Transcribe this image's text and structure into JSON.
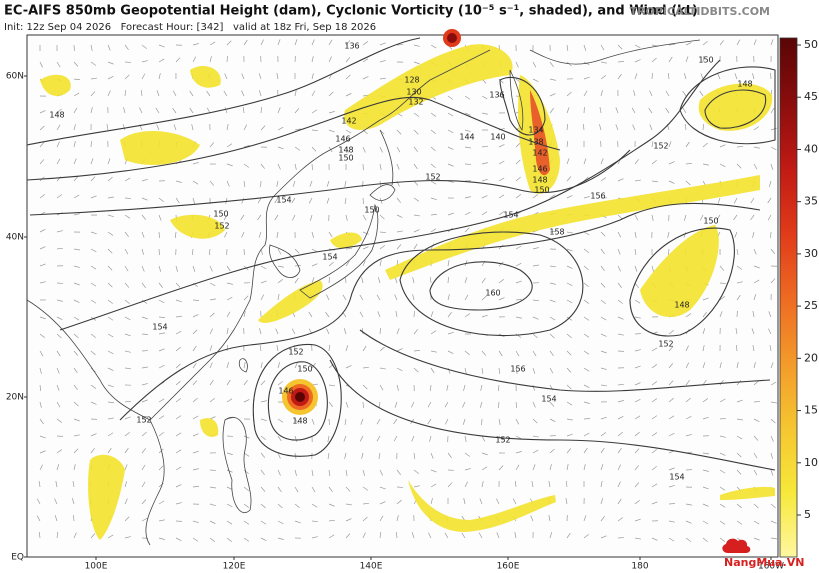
{
  "header": {
    "title": "EC-AIFS 850mb Geopotential Height (dam), Cyclonic Vorticity (10⁻⁵ s⁻¹, shaded), and Wind (kt)",
    "subtitle": "Init: 12z Sep 04 2026   Forecast Hour: [342]   valid at 18z Fri, Sep 18 2026",
    "source": "TROPICALTIDBITS.COM"
  },
  "map": {
    "lat_labels": [
      "60N",
      "40N",
      "20N",
      "EQ"
    ],
    "lon_labels": [
      "100E",
      "120E",
      "140E",
      "160E",
      "180",
      "160W"
    ],
    "contour_labels": [
      "136",
      "128",
      "130",
      "132",
      "148",
      "142",
      "146",
      "148",
      "150",
      "150",
      "152",
      "154",
      "154",
      "152",
      "154",
      "150",
      "144",
      "140",
      "136",
      "134",
      "138",
      "142",
      "146",
      "148",
      "150",
      "154",
      "152",
      "156",
      "158",
      "160",
      "150",
      "148",
      "152",
      "156",
      "154",
      "152",
      "152",
      "150",
      "146",
      "148",
      "152",
      "154",
      "150",
      "148"
    ]
  },
  "colorbar": {
    "ticks": [
      50,
      45,
      40,
      35,
      30,
      25,
      20,
      15,
      10,
      5
    ],
    "colors": [
      "#fff7a0",
      "#f7e83a",
      "#f5c530",
      "#f39a2a",
      "#ee6a22",
      "#e03a1a",
      "#c01a14",
      "#8a0d0d",
      "#5a0505"
    ]
  },
  "watermark": "NangMua.VN"
}
